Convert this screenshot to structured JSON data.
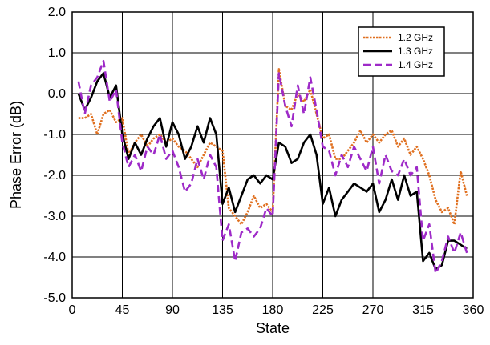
{
  "chart_data": {
    "type": "line",
    "title": "",
    "xlabel": "State",
    "ylabel": "Phase Error (dB)",
    "xlim": [
      0,
      360
    ],
    "ylim": [
      -5,
      2
    ],
    "x_ticks": [
      0,
      45,
      90,
      135,
      180,
      225,
      270,
      315,
      360
    ],
    "x_tick_labels": [
      "0",
      "45",
      "90",
      "135",
      "180",
      "225",
      "270",
      "315",
      "360"
    ],
    "y_ticks": [
      2,
      1,
      0,
      -1,
      -2,
      -3,
      -4,
      -5
    ],
    "y_tick_labels": [
      "2.0",
      "1.0",
      "0.0",
      "-1.0",
      "-2.0",
      "-3.0",
      "-4.0",
      "-5.0"
    ],
    "grid": true,
    "legend_position": "top-right",
    "series": [
      {
        "name": "1.2 GHz",
        "color": "#E07020",
        "dash": "dotted",
        "x": [
          5.6,
          11.3,
          16.9,
          22.5,
          28.1,
          33.8,
          39.4,
          45,
          50.6,
          56.3,
          61.9,
          67.5,
          73.1,
          78.8,
          84.4,
          90,
          95.6,
          101.3,
          106.9,
          112.5,
          118.1,
          123.8,
          129.4,
          135,
          140.6,
          146.3,
          151.9,
          157.5,
          163.1,
          168.8,
          174.4,
          180,
          185.6,
          191.3,
          196.9,
          202.5,
          208.1,
          213.8,
          219.4,
          225,
          230.6,
          236.3,
          241.9,
          247.5,
          253.1,
          258.8,
          264.4,
          270,
          275.6,
          281.3,
          286.9,
          292.5,
          298.1,
          303.8,
          309.4,
          315,
          320.6,
          326.3,
          331.9,
          337.5,
          343.1,
          348.8,
          354.4
        ],
        "y": [
          -0.6,
          -0.6,
          -0.5,
          -1.0,
          -0.5,
          -0.4,
          -0.7,
          -0.6,
          -1.5,
          -1.2,
          -1.0,
          -1.3,
          -1.1,
          -1.0,
          -1.2,
          -1.1,
          -1.3,
          -1.4,
          -1.6,
          -1.8,
          -1.5,
          -1.2,
          -1.3,
          -1.4,
          -2.8,
          -3.0,
          -3.2,
          -2.9,
          -2.5,
          -2.8,
          -2.7,
          -2.9,
          0.6,
          -0.3,
          -0.4,
          0.0,
          -0.2,
          0.1,
          -0.5,
          -1.1,
          -1.0,
          -1.6,
          -1.6,
          -1.4,
          -1.2,
          -0.9,
          -1.2,
          -1.0,
          -1.2,
          -1.0,
          -0.9,
          -1.3,
          -1.1,
          -1.5,
          -1.3,
          -1.6,
          -2.0,
          -2.6,
          -2.9,
          -2.8,
          -3.2,
          -1.9,
          -2.5
        ]
      },
      {
        "name": "1.3 GHz",
        "color": "#000000",
        "dash": "solid",
        "x": [
          5.6,
          11.3,
          16.9,
          22.5,
          28.1,
          33.8,
          39.4,
          45,
          50.6,
          56.3,
          61.9,
          67.5,
          73.1,
          78.8,
          84.4,
          90,
          95.6,
          101.3,
          106.9,
          112.5,
          118.1,
          123.8,
          129.4,
          135,
          140.6,
          146.3,
          151.9,
          157.5,
          163.1,
          168.8,
          174.4,
          180,
          185.6,
          191.3,
          196.9,
          202.5,
          208.1,
          213.8,
          219.4,
          225,
          230.6,
          236.3,
          241.9,
          247.5,
          253.1,
          258.8,
          264.4,
          270,
          275.6,
          281.3,
          286.9,
          292.5,
          298.1,
          303.8,
          309.4,
          315,
          320.6,
          326.3,
          331.9,
          337.5,
          343.1,
          348.8,
          354.4
        ],
        "y": [
          0.0,
          -0.4,
          -0.1,
          0.3,
          0.5,
          -0.1,
          0.2,
          -1.0,
          -1.6,
          -1.2,
          -1.5,
          -1.1,
          -0.8,
          -0.6,
          -1.3,
          -0.7,
          -1.0,
          -1.6,
          -1.3,
          -0.8,
          -1.2,
          -0.6,
          -1.0,
          -2.7,
          -2.3,
          -2.9,
          -2.5,
          -2.1,
          -2.0,
          -2.2,
          -2.0,
          -2.1,
          -1.2,
          -1.3,
          -1.7,
          -1.6,
          -1.2,
          -1.0,
          -1.5,
          -2.7,
          -2.3,
          -3.0,
          -2.6,
          -2.4,
          -2.2,
          -2.3,
          -2.4,
          -2.2,
          -2.9,
          -2.6,
          -2.1,
          -2.6,
          -2.0,
          -2.5,
          -2.4,
          -4.1,
          -3.9,
          -4.3,
          -4.2,
          -3.6,
          -3.6,
          -3.7,
          -3.8
        ]
      },
      {
        "name": "1.4 GHz",
        "color": "#9E2AC8",
        "dash": "dashed",
        "x": [
          5.6,
          11.3,
          16.9,
          22.5,
          28.1,
          33.8,
          39.4,
          45,
          50.6,
          56.3,
          61.9,
          67.5,
          73.1,
          78.8,
          84.4,
          90,
          95.6,
          101.3,
          106.9,
          112.5,
          118.1,
          123.8,
          129.4,
          135,
          140.6,
          146.3,
          151.9,
          157.5,
          163.1,
          168.8,
          174.4,
          180,
          185.6,
          191.3,
          196.9,
          202.5,
          208.1,
          213.8,
          219.4,
          225,
          230.6,
          236.3,
          241.9,
          247.5,
          253.1,
          258.8,
          264.4,
          270,
          275.6,
          281.3,
          286.9,
          292.5,
          298.1,
          303.8,
          309.4,
          315,
          320.6,
          326.3,
          331.9,
          337.5,
          343.1,
          348.8,
          354.4
        ],
        "y": [
          0.3,
          -0.5,
          0.2,
          0.4,
          0.8,
          -0.2,
          0.1,
          -1.2,
          -1.8,
          -1.5,
          -1.9,
          -1.3,
          -1.5,
          -1.0,
          -1.6,
          -1.4,
          -1.8,
          -2.4,
          -2.2,
          -1.6,
          -2.1,
          -1.5,
          -1.8,
          -3.6,
          -3.2,
          -4.1,
          -3.4,
          -3.3,
          -3.5,
          -3.3,
          -2.8,
          -3.0,
          0.5,
          -0.3,
          -0.8,
          0.2,
          -0.5,
          0.4,
          -0.4,
          -1.3,
          -1.4,
          -2.0,
          -1.5,
          -1.8,
          -1.3,
          -1.6,
          -1.9,
          -1.3,
          -2.2,
          -1.5,
          -1.9,
          -2.0,
          -1.6,
          -2.0,
          -1.8,
          -3.6,
          -3.2,
          -4.4,
          -4.1,
          -3.5,
          -3.9,
          -3.4,
          -3.9
        ]
      }
    ]
  }
}
